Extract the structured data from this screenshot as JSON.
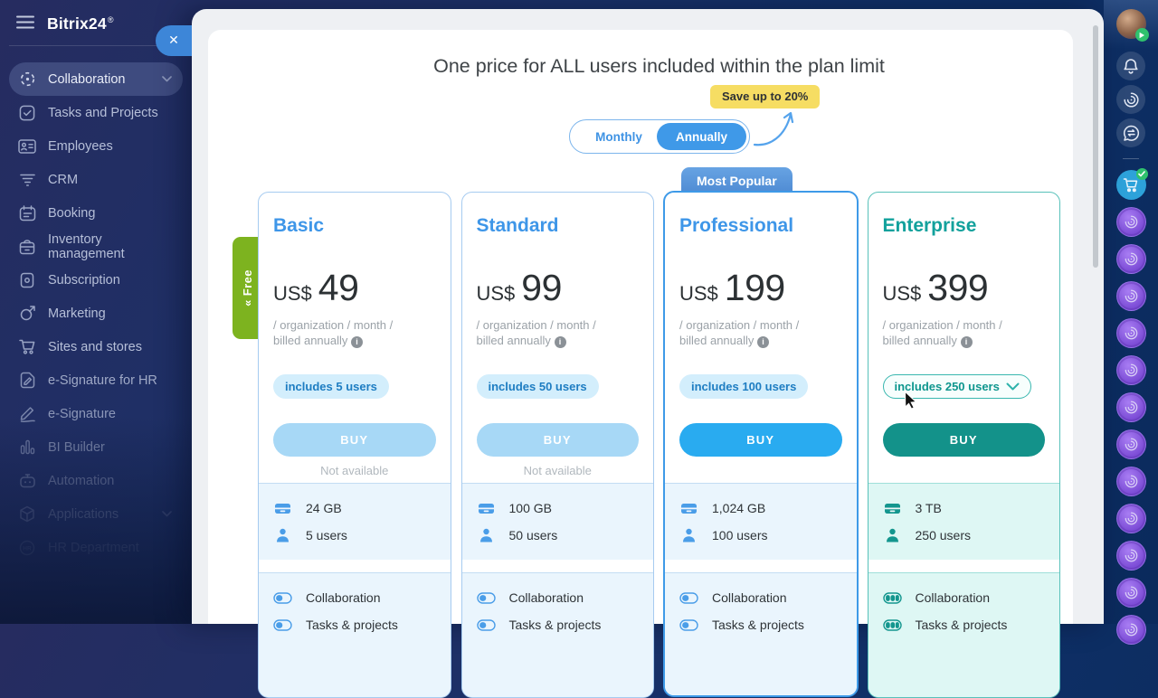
{
  "app": {
    "logo_text": "Bitrix24",
    "logo_mark": "®"
  },
  "sidebar": {
    "items": [
      {
        "label": "Collaboration",
        "icon": "collaboration",
        "selected": true,
        "has_chevron": true
      },
      {
        "label": "Tasks and Projects",
        "icon": "tasks"
      },
      {
        "label": "Employees",
        "icon": "employees"
      },
      {
        "label": "CRM",
        "icon": "crm"
      },
      {
        "label": "Booking",
        "icon": "booking"
      },
      {
        "label": "Inventory management",
        "icon": "inventory"
      },
      {
        "label": "Subscription",
        "icon": "subscription"
      },
      {
        "label": "Marketing",
        "icon": "marketing"
      },
      {
        "label": "Sites and stores",
        "icon": "sites"
      },
      {
        "label": "e-Signature for HR",
        "icon": "esignhr"
      },
      {
        "label": "e-Signature",
        "icon": "esign"
      },
      {
        "label": "BI Builder",
        "icon": "bi"
      },
      {
        "label": "Automation",
        "icon": "automation"
      },
      {
        "label": "Applications",
        "icon": "applications",
        "has_chevron": true
      },
      {
        "label": "HR Department",
        "icon": "hr"
      }
    ]
  },
  "overlay": {
    "close_glyph": "✕"
  },
  "pricing": {
    "title": "One price for ALL users included within the plan limit",
    "save_badge": "Save up to 20%",
    "toggle": {
      "options": [
        "Monthly",
        "Annually"
      ],
      "selected": "Annually"
    },
    "most_popular_badge": "Most Popular",
    "free_tab": {
      "chevron": "«",
      "label": "Free"
    }
  },
  "plans": [
    {
      "name": "Basic",
      "theme": "blue",
      "popular": false,
      "currency": "US$",
      "price": "49",
      "billing_note": "/ organization / month / billed annually",
      "users_pill": "includes 5 users",
      "pill_dropdown": false,
      "buy_label": "BUY",
      "buy_enabled": false,
      "availability_note": "Not available",
      "storage": "24 GB",
      "users": "5 users",
      "features": [
        "Collaboration",
        "Tasks & projects"
      ]
    },
    {
      "name": "Standard",
      "theme": "blue",
      "popular": false,
      "currency": "US$",
      "price": "99",
      "billing_note": "/ organization / month / billed annually",
      "users_pill": "includes 50 users",
      "pill_dropdown": false,
      "buy_label": "BUY",
      "buy_enabled": false,
      "availability_note": "Not available",
      "storage": "100 GB",
      "users": "50 users",
      "features": [
        "Collaboration",
        "Tasks & projects"
      ]
    },
    {
      "name": "Professional",
      "theme": "blue",
      "popular": true,
      "currency": "US$",
      "price": "199",
      "billing_note": "/ organization / month / billed annually",
      "users_pill": "includes 100 users",
      "pill_dropdown": false,
      "buy_label": "BUY",
      "buy_enabled": true,
      "availability_note": "",
      "storage": "1,024 GB",
      "users": "100 users",
      "features": [
        "Collaboration",
        "Tasks & projects"
      ]
    },
    {
      "name": "Enterprise",
      "theme": "teal",
      "popular": false,
      "currency": "US$",
      "price": "399",
      "billing_note": "/ organization / month / billed annually",
      "users_pill": "includes 250 users",
      "pill_dropdown": true,
      "buy_label": "BUY",
      "buy_enabled": true,
      "availability_note": "",
      "storage": "3 TB",
      "users": "250 users",
      "features": [
        "Collaboration",
        "Tasks & projects"
      ]
    }
  ],
  "right_rail": {
    "buttons": [
      {
        "name": "notifications",
        "icon": "bell"
      },
      {
        "name": "copilot",
        "icon": "copilot"
      },
      {
        "name": "messenger",
        "icon": "messenger"
      }
    ],
    "cart": {
      "name": "market-cart",
      "icon": "cart"
    },
    "copilot_circle_count": 12
  },
  "colors": {
    "accent_blue": "#3e96e8",
    "accent_teal": "#12a19c",
    "buy_blue": "#29abf0",
    "buy_teal": "#13928a",
    "badge_yellow": "#f6dd63",
    "free_green": "#7db31f",
    "sidebar_navy": "#16316a",
    "purple_circle": "#7747d3"
  }
}
